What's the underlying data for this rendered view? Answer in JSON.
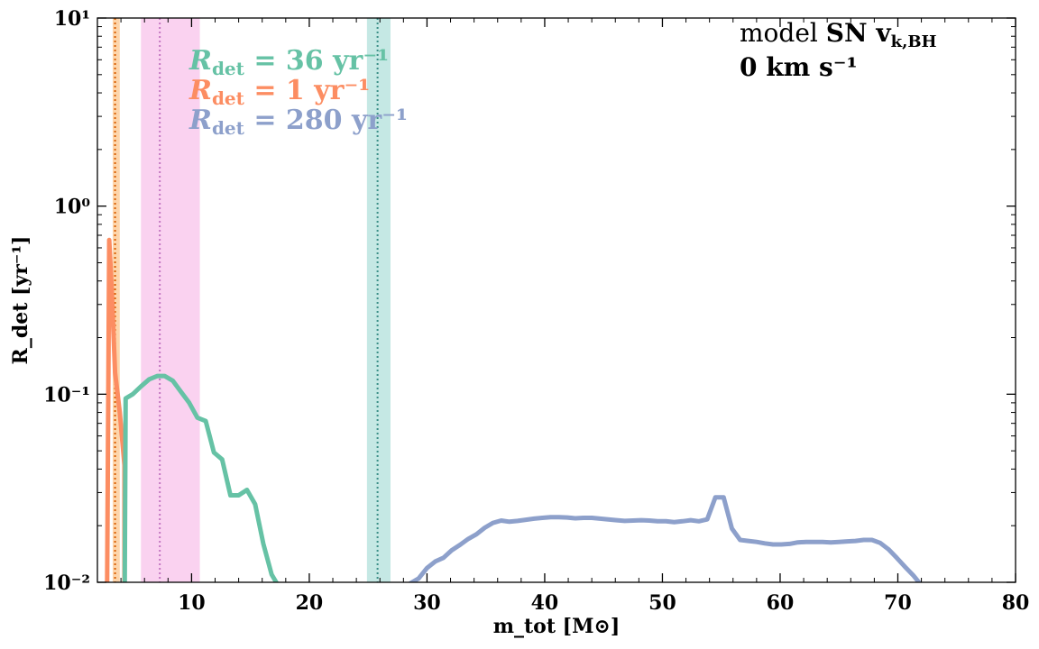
{
  "chart_data": {
    "type": "line",
    "title": "",
    "xlabel": "m_tot [M⊙]",
    "ylabel": "R_det [yr⁻¹]",
    "xlim": [
      2,
      80
    ],
    "ylim": [
      0.01,
      10
    ],
    "yscale": "log",
    "x_ticks": [
      10,
      20,
      30,
      40,
      50,
      60,
      70,
      80
    ],
    "x_tick_labels": [
      "10",
      "20",
      "30",
      "40",
      "50",
      "60",
      "70",
      "80"
    ],
    "y_ticks": [
      0.01,
      0.1,
      1,
      10
    ],
    "y_tick_labels": [
      "10⁻²",
      "10⁻¹",
      "10⁰",
      "10¹"
    ],
    "grid": false,
    "annotation": {
      "line1_prefix": "model ",
      "line1_bold": "SN v",
      "line1_sub": "k,BH",
      "line2": "0 km s⁻¹"
    },
    "legend": [
      {
        "symbol": "R",
        "sub": "det",
        "text": " = 36 yr⁻¹",
        "color": "#66c2a5"
      },
      {
        "symbol": "R",
        "sub": "det",
        "text": " = 1 yr⁻¹",
        "color": "#fc8d62"
      },
      {
        "symbol": "R",
        "sub": "det",
        "text": " = 280 yr⁻¹",
        "color": "#8da0cb"
      }
    ],
    "bands": [
      {
        "x0": 3.3,
        "x1": 3.9,
        "median": 3.5,
        "color": "#fdd0a2",
        "line_color": "#d95f02"
      },
      {
        "x0": 5.7,
        "x1": 10.7,
        "median": 7.3,
        "color": "#f9cdee",
        "line_color": "#c377c1"
      },
      {
        "x0": 24.9,
        "x1": 26.9,
        "median": 25.8,
        "color": "#bfe6e1",
        "line_color": "#3c8f88"
      }
    ],
    "series": [
      {
        "color": "#fc8d62",
        "x": [
          2.8,
          3.0,
          3.2,
          3.5,
          3.9,
          4.3,
          4.3
        ],
        "y": [
          0.005,
          0.66,
          0.38,
          0.13,
          0.08,
          0.042,
          0.005
        ]
      },
      {
        "color": "#66c2a5",
        "x": [
          4.3,
          4.4,
          5.0,
          5.7,
          6.4,
          7.1,
          7.7,
          8.4,
          9.1,
          9.8,
          10.5,
          11.2,
          11.9,
          12.6,
          13.3,
          14.0,
          14.7,
          15.4,
          16.1,
          16.8,
          17.4
        ],
        "y": [
          0.005,
          0.095,
          0.1,
          0.11,
          0.12,
          0.125,
          0.125,
          0.118,
          0.103,
          0.09,
          0.075,
          0.072,
          0.049,
          0.045,
          0.029,
          0.029,
          0.031,
          0.026,
          0.016,
          0.011,
          0.0095
        ]
      },
      {
        "color": "#8da0cb",
        "x": [
          28.5,
          29.3,
          30.0,
          30.7,
          31.4,
          32.1,
          32.8,
          33.5,
          34.2,
          34.9,
          35.6,
          36.3,
          37.0,
          37.7,
          38.4,
          39.1,
          39.8,
          40.5,
          41.2,
          41.9,
          42.6,
          43.3,
          44.0,
          44.7,
          45.4,
          46.1,
          46.8,
          47.5,
          48.2,
          48.9,
          49.6,
          50.3,
          51.0,
          51.7,
          52.4,
          53.1,
          53.8,
          54.5,
          55.2,
          55.9,
          56.6,
          57.3,
          58.0,
          58.7,
          59.4,
          60.1,
          60.8,
          61.5,
          62.2,
          62.9,
          63.6,
          64.3,
          65.0,
          65.7,
          66.4,
          67.1,
          67.8,
          68.5,
          69.2,
          69.9,
          70.6,
          71.3,
          71.9
        ],
        "y": [
          0.0098,
          0.0105,
          0.0119,
          0.0129,
          0.0135,
          0.0148,
          0.0158,
          0.017,
          0.018,
          0.0195,
          0.0207,
          0.0213,
          0.021,
          0.0212,
          0.0215,
          0.0218,
          0.022,
          0.0222,
          0.0222,
          0.0221,
          0.0219,
          0.022,
          0.022,
          0.0218,
          0.0216,
          0.0214,
          0.0212,
          0.0213,
          0.0214,
          0.0213,
          0.0211,
          0.0211,
          0.0209,
          0.0211,
          0.0214,
          0.0211,
          0.0216,
          0.0283,
          0.0283,
          0.0193,
          0.0168,
          0.0166,
          0.0164,
          0.0161,
          0.0159,
          0.0159,
          0.016,
          0.0163,
          0.0164,
          0.0164,
          0.0164,
          0.0163,
          0.0164,
          0.0165,
          0.0166,
          0.0168,
          0.0168,
          0.0162,
          0.015,
          0.0135,
          0.0121,
          0.0109,
          0.0098
        ]
      }
    ]
  }
}
